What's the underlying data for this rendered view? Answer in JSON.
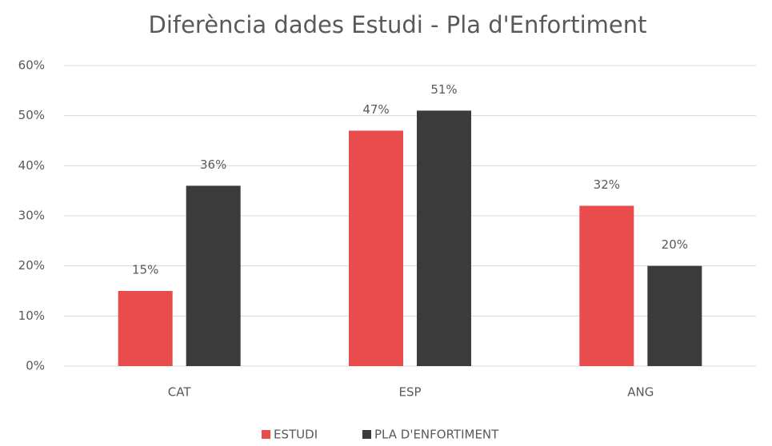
{
  "chart_data": {
    "type": "bar",
    "title": "Diferència dades Estudi - Pla d'Enfortiment",
    "categories": [
      "CAT",
      "ESP",
      "ANG"
    ],
    "series": [
      {
        "name": "ESTUDI",
        "color": "#e84c4c",
        "values": [
          15,
          47,
          32
        ],
        "value_labels": [
          "15%",
          "47%",
          "32%"
        ]
      },
      {
        "name": "PLA D'ENFORTIMENT",
        "color": "#3b3b3b",
        "values": [
          36,
          51,
          20
        ],
        "value_labels": [
          "36%",
          "51%",
          "20%"
        ]
      }
    ],
    "ylim": [
      0,
      60
    ],
    "yticks": [
      {
        "value": 0,
        "label": "0%"
      },
      {
        "value": 10,
        "label": "10%"
      },
      {
        "value": 20,
        "label": "20%"
      },
      {
        "value": 30,
        "label": "30%"
      },
      {
        "value": 40,
        "label": "40%"
      },
      {
        "value": 50,
        "label": "50%"
      },
      {
        "value": 60,
        "label": "60%"
      }
    ],
    "grid": true,
    "legend": "bottom"
  }
}
